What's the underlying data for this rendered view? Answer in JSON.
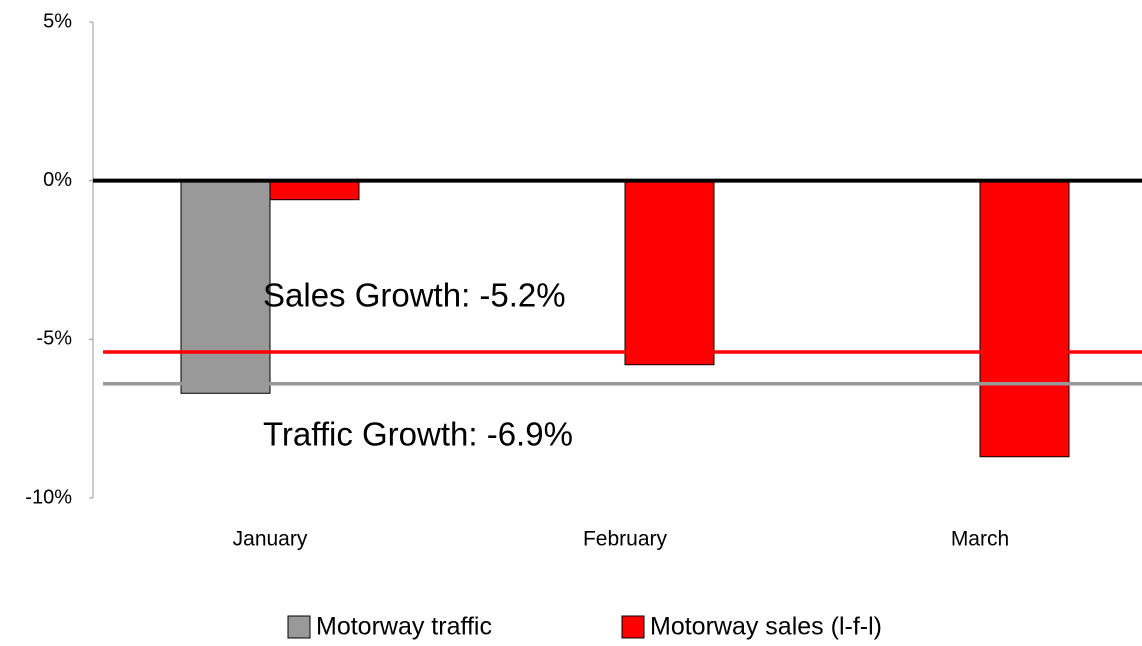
{
  "chart_data": {
    "type": "bar",
    "categories": [
      "January",
      "February",
      "March"
    ],
    "series": [
      {
        "name": "Motorway traffic",
        "color": "#999999",
        "values": [
          -6.7,
          null,
          null
        ]
      },
      {
        "name": "Motorway sales (l-f-l)",
        "color": "#ff0000",
        "values": [
          -0.6,
          -5.8,
          -8.7
        ]
      }
    ],
    "ylim": [
      -10,
      5
    ],
    "yticks": [
      {
        "value": 5,
        "label": "5%"
      },
      {
        "value": 0,
        "label": "0%"
      },
      {
        "value": -5,
        "label": "-5%"
      },
      {
        "value": -10,
        "label": "-10%"
      }
    ],
    "reference_lines": [
      {
        "value": -5.4,
        "color": "#ff0000"
      },
      {
        "value": -6.4,
        "color": "#999999"
      }
    ],
    "annotations": [
      {
        "text": "Sales Growth: -5.2%",
        "color": "#ff0000"
      },
      {
        "text": "Traffic Growth: -6.9%",
        "color": "#000000"
      }
    ],
    "legend": "bottom"
  }
}
